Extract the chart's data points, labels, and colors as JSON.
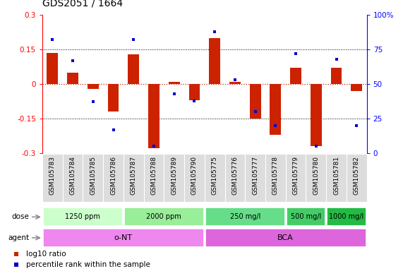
{
  "title": "GDS2051 / 1664",
  "samples": [
    "GSM105783",
    "GSM105784",
    "GSM105785",
    "GSM105786",
    "GSM105787",
    "GSM105788",
    "GSM105789",
    "GSM105790",
    "GSM105775",
    "GSM105776",
    "GSM105777",
    "GSM105778",
    "GSM105779",
    "GSM105780",
    "GSM105781",
    "GSM105782"
  ],
  "log10_ratio": [
    0.135,
    0.05,
    -0.02,
    -0.12,
    0.13,
    -0.28,
    0.01,
    -0.07,
    0.2,
    0.01,
    -0.15,
    -0.22,
    0.07,
    -0.27,
    0.07,
    -0.03
  ],
  "percentile_rank": [
    82,
    67,
    37,
    17,
    82,
    5,
    43,
    38,
    88,
    53,
    30,
    20,
    72,
    5,
    68,
    20
  ],
  "ylim": [
    -0.3,
    0.3
  ],
  "yticks_left": [
    -0.3,
    -0.15,
    0.0,
    0.15,
    0.3
  ],
  "yticks_right": [
    0,
    25,
    50,
    75,
    100
  ],
  "bar_color": "#cc2200",
  "dot_color": "#0000cc",
  "zero_line_color": "#cc2200",
  "dose_groups": [
    {
      "label": "1250 ppm",
      "start": 0,
      "end": 4,
      "color": "#ccffcc"
    },
    {
      "label": "2000 ppm",
      "start": 4,
      "end": 8,
      "color": "#99ee99"
    },
    {
      "label": "250 mg/l",
      "start": 8,
      "end": 12,
      "color": "#66dd88"
    },
    {
      "label": "500 mg/l",
      "start": 12,
      "end": 14,
      "color": "#44cc66"
    },
    {
      "label": "1000 mg/l",
      "start": 14,
      "end": 16,
      "color": "#22bb44"
    }
  ],
  "agent_groups": [
    {
      "label": "o-NT",
      "start": 0,
      "end": 8,
      "color": "#ee88ee"
    },
    {
      "label": "BCA",
      "start": 8,
      "end": 16,
      "color": "#dd66dd"
    }
  ],
  "legend_items": [
    {
      "color": "#cc2200",
      "label": "log10 ratio"
    },
    {
      "color": "#0000cc",
      "label": "percentile rank within the sample"
    }
  ],
  "bar_width": 0.55,
  "dot_size": 3.5,
  "tick_fontsize": 7.5,
  "sample_fontsize": 6.5,
  "title_fontsize": 10,
  "row_label_fontsize": 7.5
}
